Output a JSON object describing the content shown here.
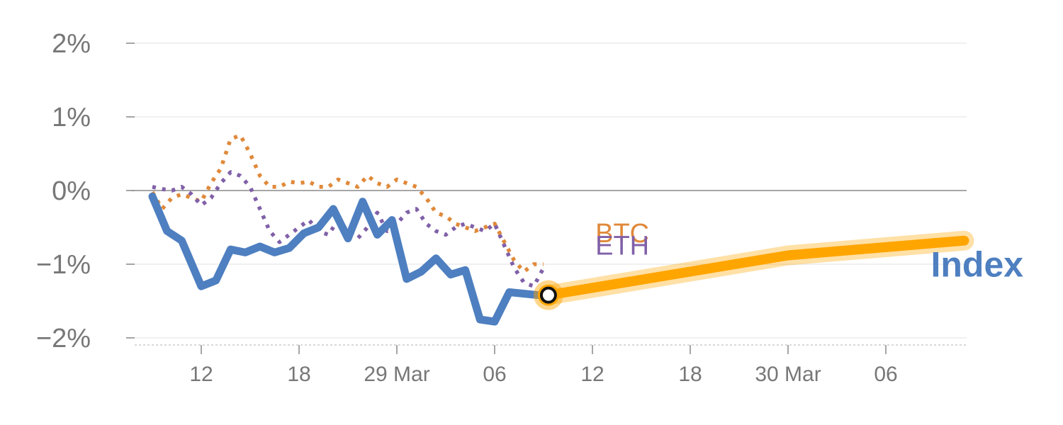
{
  "chart_data": {
    "type": "line",
    "y_axis": {
      "ylim": [
        -2,
        2
      ],
      "ticks": [
        {
          "value": 2,
          "label": "2%"
        },
        {
          "value": 1,
          "label": "1%"
        },
        {
          "value": 0,
          "label": "0%"
        },
        {
          "value": -1,
          "label": "−1%"
        },
        {
          "value": -2,
          "label": "−2%"
        }
      ]
    },
    "x_axis": {
      "xlim": [
        -7.7,
        78.2
      ],
      "ticks": [
        {
          "value": 0,
          "label": "12"
        },
        {
          "value": 10,
          "label": "18"
        },
        {
          "value": 20,
          "label": "29 Mar"
        },
        {
          "value": 30,
          "label": "06"
        },
        {
          "value": 40,
          "label": "12"
        },
        {
          "value": 50,
          "label": "18"
        },
        {
          "value": 60,
          "label": "30 Mar"
        },
        {
          "value": 70,
          "label": "06"
        }
      ]
    },
    "grid": true,
    "series": [
      {
        "name": "BTC",
        "color": "#e0893a",
        "style": "dotted",
        "x": [
          -5,
          -4,
          -3,
          -2,
          -1,
          0,
          1,
          2,
          3,
          4,
          5,
          6,
          7,
          8,
          9,
          10,
          11,
          12,
          13,
          14,
          15,
          16,
          17,
          18,
          19,
          20,
          21,
          22,
          23,
          24,
          25,
          26,
          27,
          28,
          29,
          30,
          31,
          32,
          33,
          34,
          35
        ],
        "y": [
          -0.02,
          -0.25,
          -0.1,
          -0.05,
          -0.1,
          -0.15,
          0.1,
          0.3,
          0.7,
          0.75,
          0.5,
          0.2,
          0.05,
          0.05,
          0.12,
          0.1,
          0.12,
          0.05,
          0.05,
          0.15,
          0.1,
          0.05,
          0.2,
          0.1,
          0.05,
          0.15,
          0.1,
          0.05,
          -0.1,
          -0.3,
          -0.35,
          -0.45,
          -0.5,
          -0.55,
          -0.5,
          -0.45,
          -0.7,
          -0.95,
          -1.1,
          -1.0,
          -1.0
        ]
      },
      {
        "name": "ETH",
        "color": "#8060a8",
        "style": "dotted",
        "x": [
          -5,
          -4,
          -3,
          -2,
          -1,
          0,
          1,
          2,
          3,
          4,
          5,
          6,
          7,
          8,
          9,
          10,
          11,
          12,
          13,
          14,
          15,
          16,
          17,
          18,
          19,
          20,
          21,
          22,
          23,
          24,
          25,
          26,
          27,
          28,
          29,
          30,
          31,
          32,
          33,
          34,
          35
        ],
        "y": [
          0.05,
          0.02,
          0.0,
          0.05,
          -0.05,
          -0.2,
          -0.1,
          0.1,
          0.25,
          0.2,
          0.05,
          -0.25,
          -0.55,
          -0.7,
          -0.6,
          -0.5,
          -0.4,
          -0.55,
          -0.6,
          -0.4,
          -0.55,
          -0.65,
          -0.5,
          -0.3,
          -0.55,
          -0.45,
          -0.3,
          -0.25,
          -0.45,
          -0.55,
          -0.6,
          -0.5,
          -0.45,
          -0.5,
          -0.55,
          -0.45,
          -0.75,
          -1.05,
          -1.25,
          -1.3,
          -1.05
        ]
      },
      {
        "name": "Index",
        "color": "#4e7fc0",
        "style": "solid",
        "x": [
          -5,
          -3.5,
          -2,
          0,
          1.5,
          3,
          4.5,
          6,
          7.5,
          9,
          10.5,
          12,
          13.5,
          15,
          16.5,
          18,
          19.5,
          21,
          22.5,
          24,
          25.5,
          27,
          28.5,
          30,
          31.5,
          33,
          34.5,
          35.5
        ],
        "y": [
          -0.08,
          -0.55,
          -0.68,
          -1.3,
          -1.22,
          -0.8,
          -0.84,
          -0.76,
          -0.84,
          -0.78,
          -0.58,
          -0.5,
          -0.25,
          -0.65,
          -0.15,
          -0.6,
          -0.4,
          -1.2,
          -1.1,
          -0.92,
          -1.14,
          -1.08,
          -1.75,
          -1.78,
          -1.38,
          -1.4,
          -1.42,
          -1.42
        ]
      },
      {
        "name": "",
        "role": "projection",
        "color": "#ffa500",
        "style": "solid",
        "x": [
          35.5,
          60,
          78
        ],
        "y": [
          -1.42,
          -0.88,
          -0.68
        ]
      }
    ],
    "marker": {
      "x": 35.5,
      "y": -1.42
    },
    "labels": [
      {
        "text": "BTC",
        "color": "#e0893a",
        "x": 40.3,
        "y": -0.7
      },
      {
        "text": "ETH",
        "color": "#8060a8",
        "x": 40.3,
        "y": -0.87
      },
      {
        "text": "Index",
        "color": "#4e7fc0",
        "x": 74.6,
        "y": -1.17
      }
    ]
  }
}
